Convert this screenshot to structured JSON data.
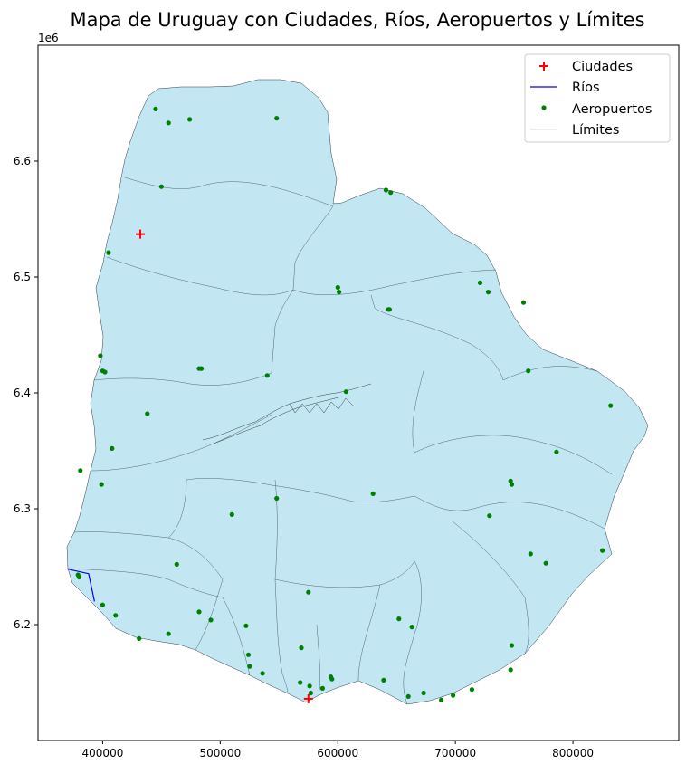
{
  "title": "Mapa de Uruguay con Ciudades, Ríos, Aeropuertos y Límites",
  "y_multiplier": "1e6",
  "x_ticks": [
    "400000",
    "500000",
    "600000",
    "700000",
    "800000"
  ],
  "y_ticks": [
    "6.2",
    "6.3",
    "6.4",
    "6.5",
    "6.6"
  ],
  "legend": {
    "ciudades": "Ciudades",
    "rios": "Ríos",
    "aeropuertos": "Aeropuertos",
    "limites": "Límites"
  },
  "colors": {
    "land": "#c3e6f3",
    "border": "#2f3e48",
    "cities": "#ff0000",
    "rivers": "#0000ff",
    "airports": "#008000",
    "limits": "#dddddd"
  },
  "chart_data": {
    "type": "scatter",
    "xlim": [
      345000,
      890000
    ],
    "ylim": [
      6100000,
      6700000
    ],
    "cities": [
      [
        432000,
        6537000
      ],
      [
        575000,
        6136000
      ]
    ],
    "river": [
      [
        370000,
        6248000
      ],
      [
        388000,
        6244000
      ],
      [
        393000,
        6220000
      ]
    ],
    "airports": [
      [
        445000,
        6645000
      ],
      [
        456000,
        6633000
      ],
      [
        474000,
        6636000
      ],
      [
        548000,
        6637000
      ],
      [
        450000,
        6578000
      ],
      [
        641000,
        6575000
      ],
      [
        645000,
        6573000
      ],
      [
        405000,
        6521000
      ],
      [
        600000,
        6491000
      ],
      [
        601000,
        6487000
      ],
      [
        721000,
        6495000
      ],
      [
        728000,
        6487000
      ],
      [
        758000,
        6478000
      ],
      [
        643000,
        6472000
      ],
      [
        644000,
        6472000
      ],
      [
        398000,
        6432000
      ],
      [
        400000,
        6419000
      ],
      [
        402000,
        6418000
      ],
      [
        482000,
        6421000
      ],
      [
        484000,
        6421000
      ],
      [
        540000,
        6415000
      ],
      [
        762000,
        6419000
      ],
      [
        607000,
        6401000
      ],
      [
        438000,
        6382000
      ],
      [
        832000,
        6389000
      ],
      [
        408000,
        6352000
      ],
      [
        786000,
        6349000
      ],
      [
        381000,
        6333000
      ],
      [
        399000,
        6321000
      ],
      [
        747000,
        6324000
      ],
      [
        748000,
        6321000
      ],
      [
        630000,
        6313000
      ],
      [
        548000,
        6309000
      ],
      [
        510000,
        6295000
      ],
      [
        729000,
        6294000
      ],
      [
        379000,
        6243000
      ],
      [
        380000,
        6241000
      ],
      [
        463000,
        6252000
      ],
      [
        764000,
        6261000
      ],
      [
        777000,
        6253000
      ],
      [
        825000,
        6264000
      ],
      [
        575000,
        6228000
      ],
      [
        400000,
        6217000
      ],
      [
        411000,
        6208000
      ],
      [
        482000,
        6211000
      ],
      [
        492000,
        6204000
      ],
      [
        522000,
        6199000
      ],
      [
        652000,
        6205000
      ],
      [
        663000,
        6198000
      ],
      [
        431000,
        6188000
      ],
      [
        456000,
        6192000
      ],
      [
        569000,
        6180000
      ],
      [
        748000,
        6182000
      ],
      [
        524000,
        6174000
      ],
      [
        525000,
        6164000
      ],
      [
        536000,
        6158000
      ],
      [
        568000,
        6150000
      ],
      [
        576000,
        6147000
      ],
      [
        587000,
        6145000
      ],
      [
        594000,
        6155000
      ],
      [
        595000,
        6153000
      ],
      [
        577000,
        6141000
      ],
      [
        639000,
        6152000
      ],
      [
        660000,
        6138000
      ],
      [
        673000,
        6141000
      ],
      [
        688000,
        6135000
      ],
      [
        698000,
        6139000
      ],
      [
        714000,
        6144000
      ],
      [
        747000,
        6161000
      ]
    ]
  }
}
